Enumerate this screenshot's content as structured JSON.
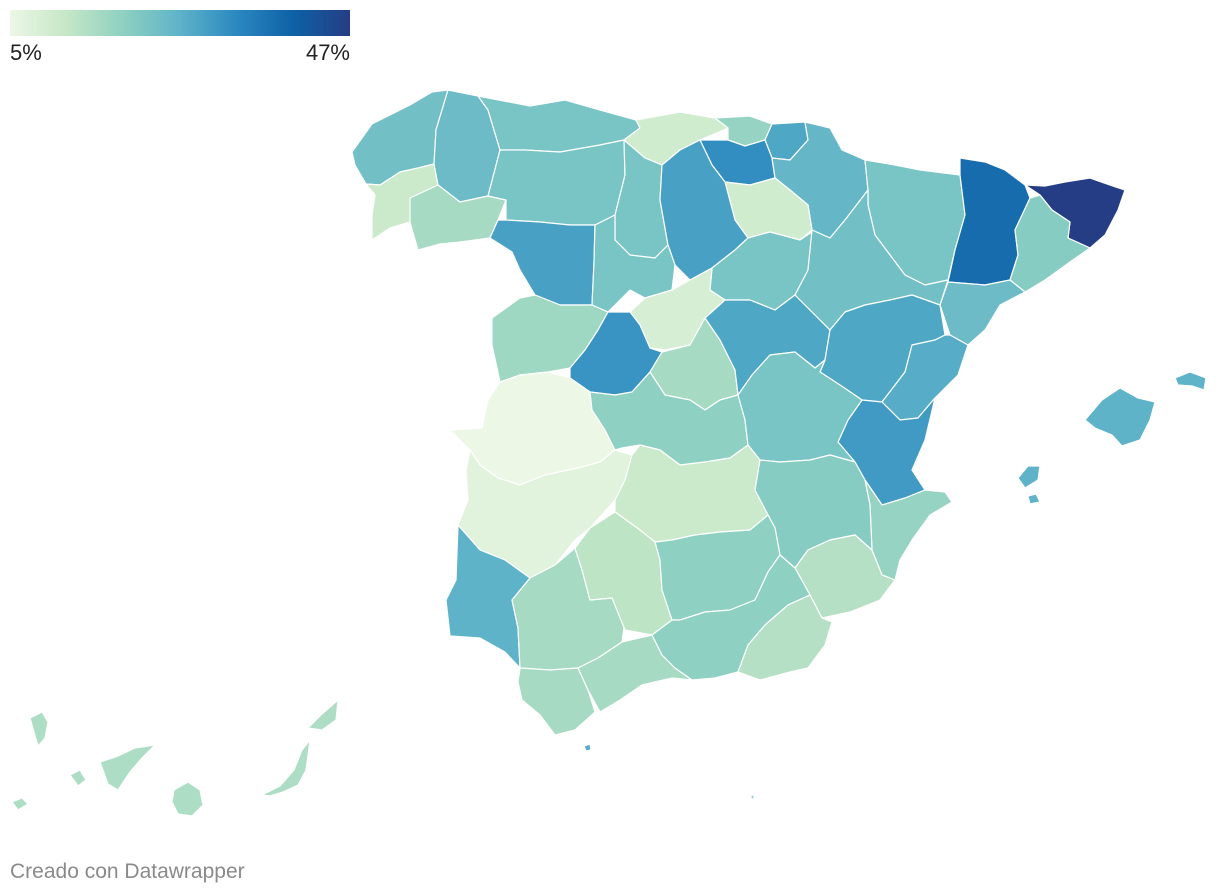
{
  "legend": {
    "min_label": "5%",
    "max_label": "47%",
    "min_value": 5,
    "max_value": 47,
    "gradient": [
      "#ecf7e6",
      "#c5e7c6",
      "#8ed0c1",
      "#5eb3c9",
      "#2b88c0",
      "#0e61a6",
      "#253d84"
    ]
  },
  "credit": "Creado con Datawrapper",
  "map": {
    "regions": [
      {
        "id": "a-coruna",
        "value": 23
      },
      {
        "id": "lugo",
        "value": 24
      },
      {
        "id": "pontevedra",
        "value": 11
      },
      {
        "id": "ourense",
        "value": 16
      },
      {
        "id": "asturias",
        "value": 22
      },
      {
        "id": "cantabria",
        "value": 10
      },
      {
        "id": "bizkaia",
        "value": 18
      },
      {
        "id": "gipuzkoa",
        "value": 28
      },
      {
        "id": "araba",
        "value": 32
      },
      {
        "id": "navarra",
        "value": 25
      },
      {
        "id": "la-rioja",
        "value": 10
      },
      {
        "id": "leon",
        "value": 22
      },
      {
        "id": "palencia",
        "value": 22
      },
      {
        "id": "burgos",
        "value": 29
      },
      {
        "id": "zamora",
        "value": 29
      },
      {
        "id": "valladolid",
        "value": 22
      },
      {
        "id": "soria",
        "value": 22
      },
      {
        "id": "salamanca",
        "value": 17
      },
      {
        "id": "segovia",
        "value": 9
      },
      {
        "id": "avila",
        "value": 31
      },
      {
        "id": "madrid",
        "value": 16
      },
      {
        "id": "guadalajara",
        "value": 28
      },
      {
        "id": "huesca",
        "value": 22
      },
      {
        "id": "zaragoza",
        "value": 23
      },
      {
        "id": "teruel",
        "value": 28
      },
      {
        "id": "lleida",
        "value": 38
      },
      {
        "id": "girona",
        "value": 47
      },
      {
        "id": "barcelona",
        "value": 20
      },
      {
        "id": "tarragona",
        "value": 24
      },
      {
        "id": "castellon",
        "value": 27
      },
      {
        "id": "valencia",
        "value": 30
      },
      {
        "id": "alicante",
        "value": 18
      },
      {
        "id": "caceres",
        "value": 5
      },
      {
        "id": "badajoz",
        "value": 7
      },
      {
        "id": "toledo",
        "value": 19
      },
      {
        "id": "cuenca",
        "value": 22
      },
      {
        "id": "ciudad-real",
        "value": 11
      },
      {
        "id": "albacete",
        "value": 20
      },
      {
        "id": "murcia",
        "value": 14
      },
      {
        "id": "huelva",
        "value": 26
      },
      {
        "id": "sevilla",
        "value": 16
      },
      {
        "id": "cordoba",
        "value": 13
      },
      {
        "id": "jaen",
        "value": 19
      },
      {
        "id": "cadiz",
        "value": 16
      },
      {
        "id": "malaga",
        "value": 16
      },
      {
        "id": "granada",
        "value": 19
      },
      {
        "id": "almeria",
        "value": 14
      },
      {
        "id": "mallorca",
        "value": 26
      },
      {
        "id": "menorca",
        "value": 26
      },
      {
        "id": "ibiza",
        "value": 26
      },
      {
        "id": "ceuta",
        "value": 27
      },
      {
        "id": "melilla",
        "value": 18
      },
      {
        "id": "santa-cruz-de-tenerife",
        "value": 15
      },
      {
        "id": "las-palmas",
        "value": 15
      }
    ]
  }
}
